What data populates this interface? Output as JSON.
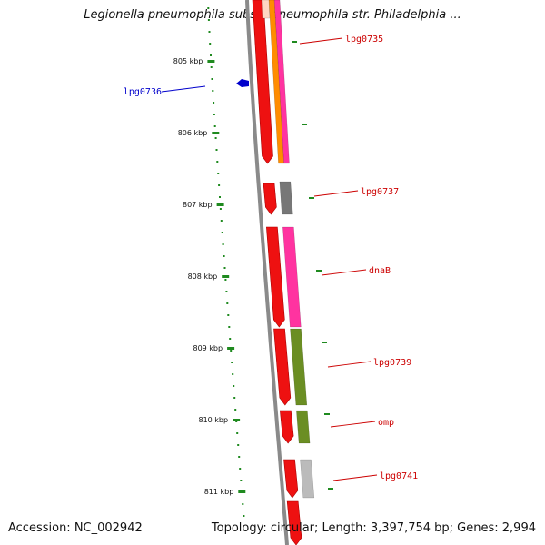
{
  "title": "Legionella pneumophila subsp. pneumophila str. Philadelphia ...",
  "footer": {
    "accession": "Accession: NC_002942",
    "stats": "Topology: circular; Length: 3,397,754 bp; Genes: 2,994"
  },
  "colors": {
    "backbone": "#8a8a8a",
    "scale": "#1f8a1f",
    "gene_forward": "#ee1111",
    "gene_label": "#cc0000",
    "highlight_label": "#0000cc",
    "cog_pink": "#ff33a0",
    "cog_orange": "#ff8c00",
    "cog_gray": "#777777",
    "cog_green": "#6b8e23",
    "cog_lightgray": "#bbbbbb"
  },
  "scale_ticks": [
    {
      "label": "805 kbp"
    },
    {
      "label": "806 kbp"
    },
    {
      "label": "807 kbp"
    },
    {
      "label": "808 kbp"
    },
    {
      "label": "809 kbp"
    },
    {
      "label": "810 kbp"
    },
    {
      "label": "811 kbp"
    }
  ],
  "genes": [
    {
      "label": "lpg0735",
      "cog": "pink",
      "cog2": "orange"
    },
    {
      "label": "lpg0737",
      "cog": "gray"
    },
    {
      "label": "dnaB",
      "cog": "pink"
    },
    {
      "label": "lpg0739",
      "cog": "green"
    },
    {
      "label": "omp",
      "cog": "green"
    },
    {
      "label": "lpg0741",
      "cog": "lightgray"
    }
  ],
  "highlight": {
    "label": "lpg0736",
    "icon": "arrow-marker-icon"
  }
}
